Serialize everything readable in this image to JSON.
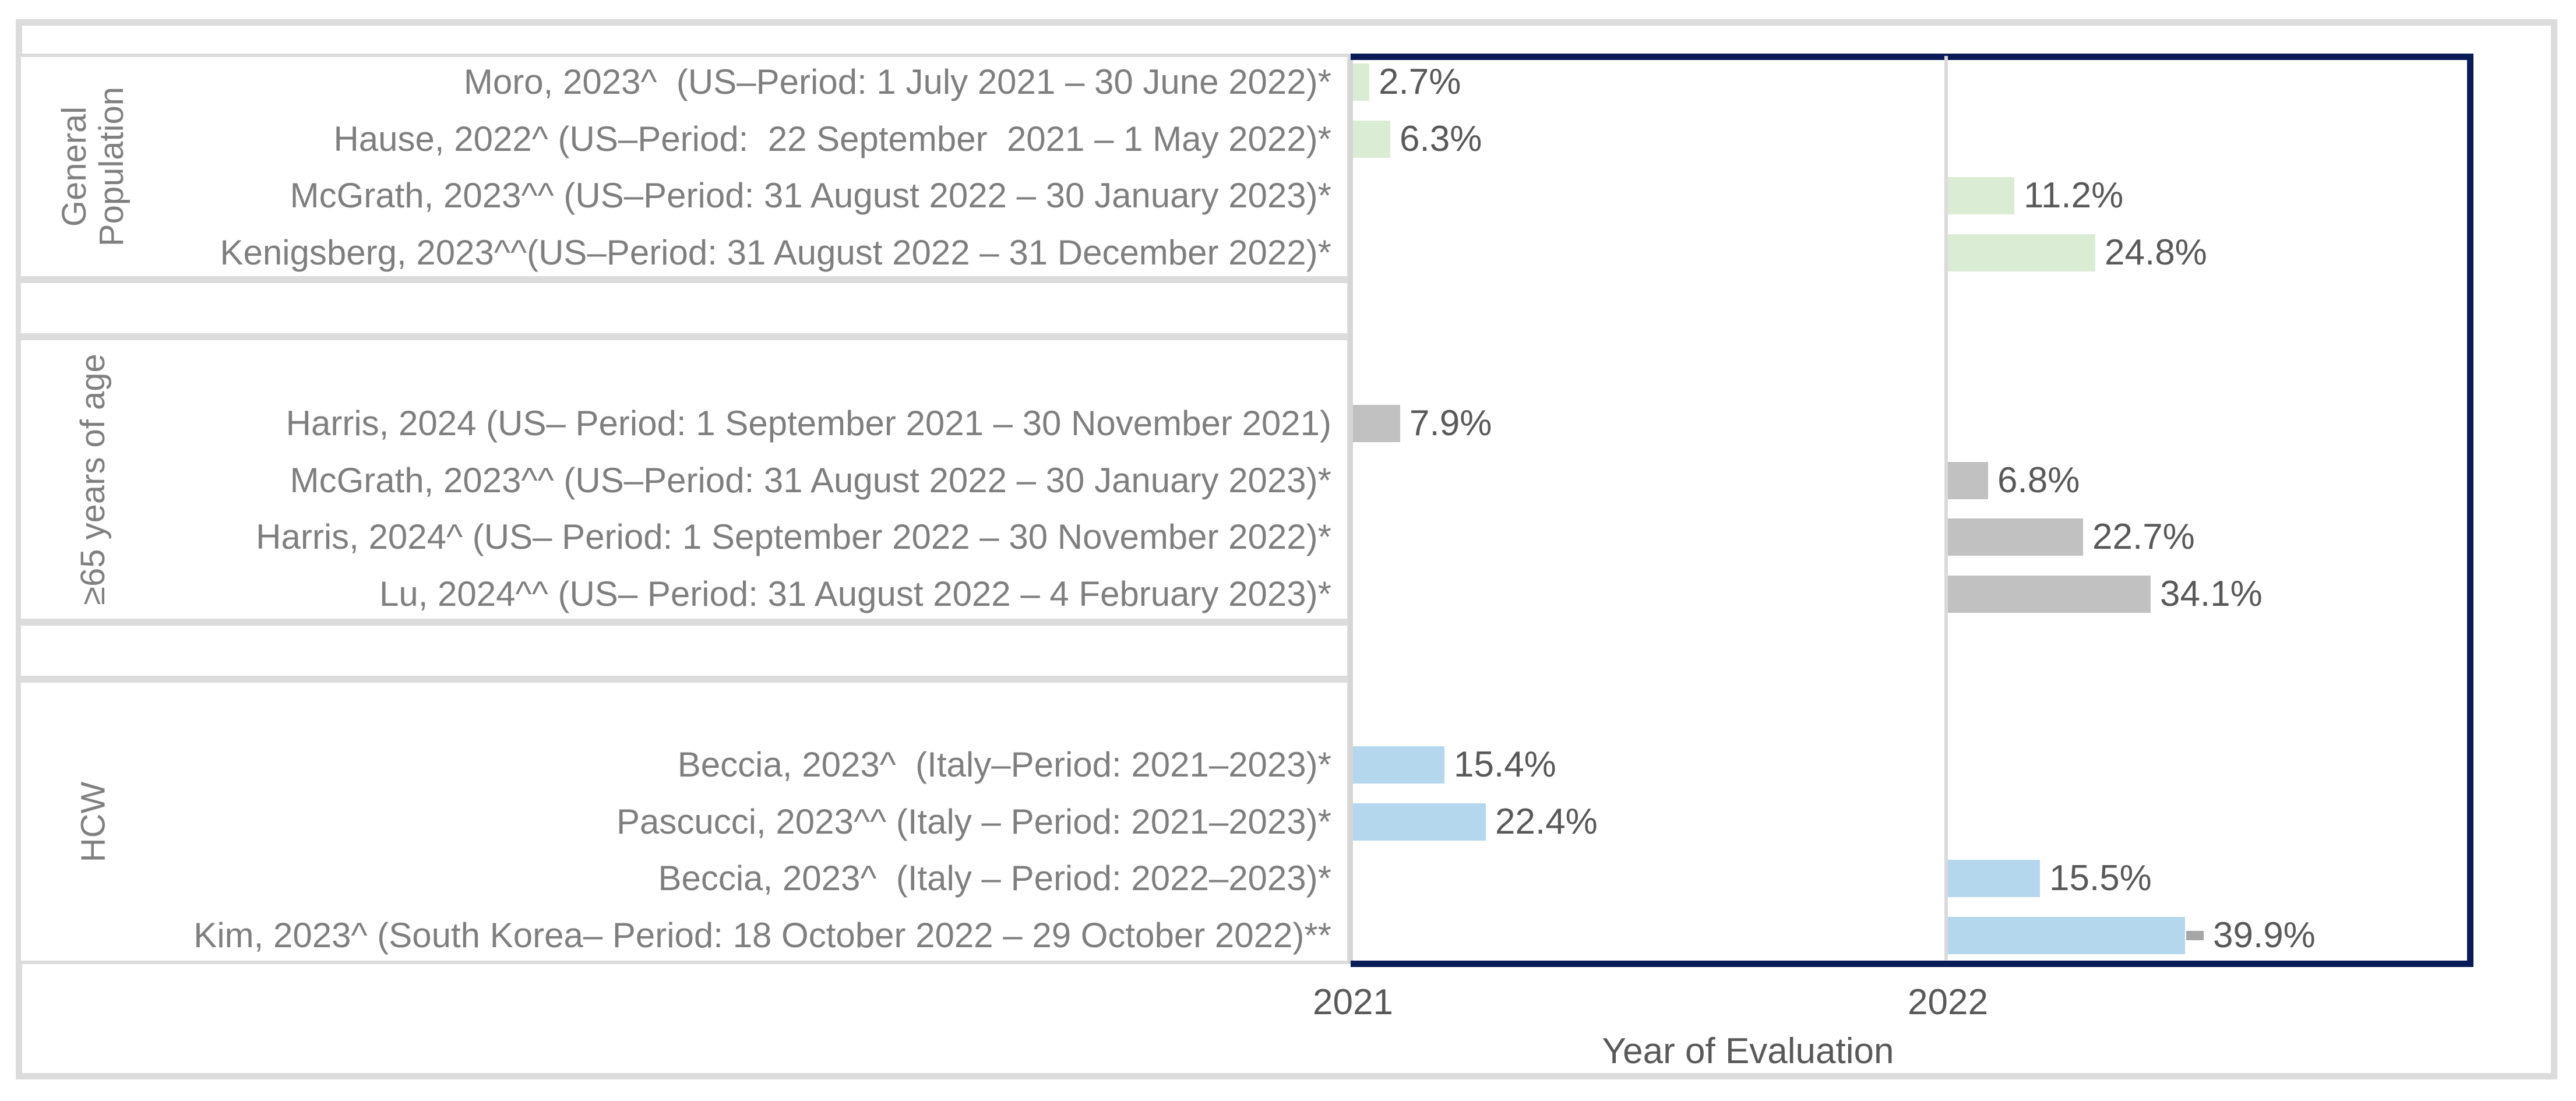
{
  "chart_data": {
    "type": "bar",
    "orientation": "horizontal",
    "title": "",
    "xlabel": "Year of Evaluation",
    "x_ticks": [
      "2021",
      "2022"
    ],
    "value_unit": "%",
    "legend": "none",
    "colors": {
      "general_population_bar": "#daecd4",
      "age65_bar": "#c1c1c1",
      "hcw_bar": "#b4d7ee",
      "plot_border": "#0a1c55",
      "grid_line": "#dadada",
      "box_border": "#dcdcdc",
      "value_text": "#595959",
      "study_text": "#7f7f7f",
      "error_cap": "#a6a6a6"
    },
    "groups": [
      {
        "label": "General Population",
        "label_lines": [
          "General",
          "Population"
        ],
        "bar_color": "#daecd4",
        "rows": [
          {
            "study": "Moro, 2023^  (US–Period: 1 July 2021 – 30 June 2022)*",
            "year": "2021",
            "value": 2.7,
            "value_label": "2.7%"
          },
          {
            "study": "Hause, 2022^ (US–Period:  22 September  2021 – 1 May 2022)*",
            "year": "2021",
            "value": 6.3,
            "value_label": "6.3%"
          },
          {
            "study": "McGrath, 2023^^ (US–Period: 31 August 2022 – 30 January 2023)*",
            "year": "2022",
            "value": 11.2,
            "value_label": "11.2%"
          },
          {
            "study": "Kenigsberg, 2023^^(US–Period: 31 August 2022 – 31 December 2022)*",
            "year": "2022",
            "value": 24.8,
            "value_label": "24.8%"
          }
        ]
      },
      {
        "label": "≥65 years of age",
        "label_lines": [
          "≥65 years of age"
        ],
        "bar_color": "#c1c1c1",
        "rows": [
          {
            "study": "Harris, 2024 (US– Period: 1 September 2021 – 30 November 2021)",
            "year": "2021",
            "value": 7.9,
            "value_label": "7.9%"
          },
          {
            "study": "McGrath, 2023^^ (US–Period: 31 August 2022 – 30 January 2023)*",
            "year": "2022",
            "value": 6.8,
            "value_label": "6.8%"
          },
          {
            "study": "Harris, 2024^ (US– Period: 1 September 2022 – 30 November 2022)*",
            "year": "2022",
            "value": 22.7,
            "value_label": "22.7%"
          },
          {
            "study": "Lu, 2024^^ (US– Period: 31 August 2022 – 4 February 2023)*",
            "year": "2022",
            "value": 34.1,
            "value_label": "34.1%"
          }
        ]
      },
      {
        "label": "HCW",
        "label_lines": [
          "HCW"
        ],
        "bar_color": "#b4d7ee",
        "rows": [
          {
            "study": "Beccia, 2023^  (Italy–Period: 2021–2023)*",
            "year": "2021",
            "value": 15.4,
            "value_label": "15.4%"
          },
          {
            "study": "Pascucci, 2023^^ (Italy – Period: 2021–2023)*",
            "year": "2021",
            "value": 22.4,
            "value_label": "22.4%"
          },
          {
            "study": "Beccia, 2023^  (Italy – Period: 2022–2023)*",
            "year": "2022",
            "value": 15.5,
            "value_label": "15.5%"
          },
          {
            "study": "Kim, 2023^ (South Korea– Period: 18 October 2022 – 29 October 2022)**",
            "year": "2022",
            "value": 39.9,
            "value_label": "39.9%",
            "error_cap": true
          }
        ]
      }
    ]
  }
}
